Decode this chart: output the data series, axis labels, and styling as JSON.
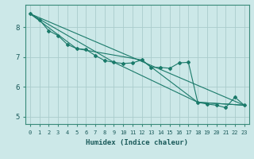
{
  "xlabel": "Humidex (Indice chaleur)",
  "ylabel": "",
  "bg_color": "#cce8e8",
  "grid_color": "#aacccc",
  "line_color": "#1a7a6a",
  "xlim": [
    -0.5,
    23.5
  ],
  "ylim": [
    4.75,
    8.75
  ],
  "yticks": [
    5,
    6,
    7,
    8
  ],
  "xticks": [
    0,
    1,
    2,
    3,
    4,
    5,
    6,
    7,
    8,
    9,
    10,
    11,
    12,
    13,
    14,
    15,
    16,
    17,
    18,
    19,
    20,
    21,
    22,
    23
  ],
  "series1_x": [
    0,
    1,
    2,
    3,
    4,
    5,
    6,
    7,
    8,
    9,
    10,
    11,
    12,
    13,
    14,
    15,
    16,
    17,
    18,
    19,
    20,
    21,
    22,
    23
  ],
  "series1_y": [
    8.45,
    8.25,
    7.88,
    7.72,
    7.42,
    7.28,
    7.25,
    7.05,
    6.88,
    6.82,
    6.78,
    6.8,
    6.9,
    6.65,
    6.65,
    6.62,
    6.8,
    6.82,
    5.48,
    5.42,
    5.38,
    5.3,
    5.65,
    5.38
  ],
  "series2_x": [
    0,
    23
  ],
  "series2_y": [
    8.45,
    5.38
  ],
  "series3_x": [
    0,
    9,
    18,
    23
  ],
  "series3_y": [
    8.45,
    6.82,
    5.48,
    5.38
  ],
  "series4_x": [
    0,
    5,
    12,
    18,
    23
  ],
  "series4_y": [
    8.45,
    7.28,
    6.9,
    5.48,
    5.38
  ],
  "xlabel_fontsize": 6.5,
  "tick_fontsize_x": 5.0,
  "tick_fontsize_y": 6.5
}
